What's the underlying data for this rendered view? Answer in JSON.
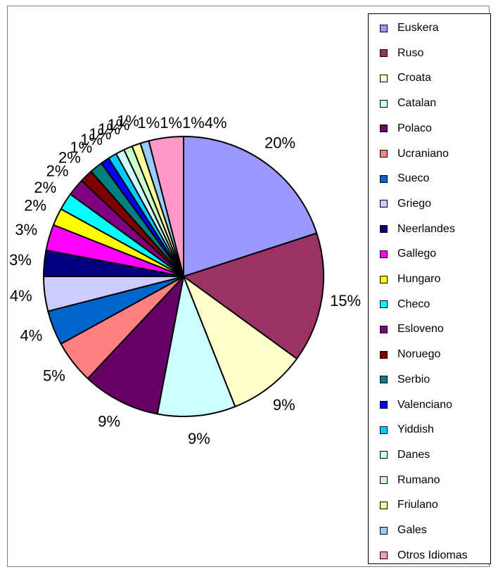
{
  "chart_data": {
    "type": "pie",
    "title": "",
    "legend_position": "right",
    "categories": [
      "Euskera",
      "Ruso",
      "Croata",
      "Catalan",
      "Polaco",
      "Ucraniano",
      "Sueco",
      "Griego",
      "Neerlandes",
      "Gallego",
      "Hungaro",
      "Checo",
      "Esloveno",
      "Noruego",
      "Serbio",
      "Valenciano",
      "Yiddish",
      "Danes",
      "Rumano",
      "Friulano",
      "Gales",
      "Otros Idiomas"
    ],
    "values": [
      20,
      15,
      9,
      9,
      9,
      5,
      4,
      4,
      3,
      3,
      2,
      2,
      2,
      1.5,
      1.5,
      1,
      1,
      1,
      1,
      1,
      1,
      4
    ],
    "labels": [
      "20%",
      "15%",
      "9%",
      "9%",
      "9%",
      "5%",
      "4%",
      "4%",
      "3%",
      "3%",
      "2%",
      "2%",
      "2%",
      "2%",
      "1%",
      "1%",
      "1%",
      "1%",
      "1%",
      "1%",
      "",
      ""
    ],
    "top_label": "1%1%1%4%",
    "colors": [
      "#9999FF",
      "#993366",
      "#FFFFCC",
      "#CCFFFF",
      "#660066",
      "#FF8080",
      "#0066CC",
      "#CCCCFF",
      "#000080",
      "#FF00FF",
      "#FFFF00",
      "#00FFFF",
      "#800080",
      "#800000",
      "#008080",
      "#0000FF",
      "#00CCFF",
      "#CCFFFF",
      "#CCFFCC",
      "#FFFF99",
      "#99CCFF",
      "#FF99CC"
    ]
  }
}
